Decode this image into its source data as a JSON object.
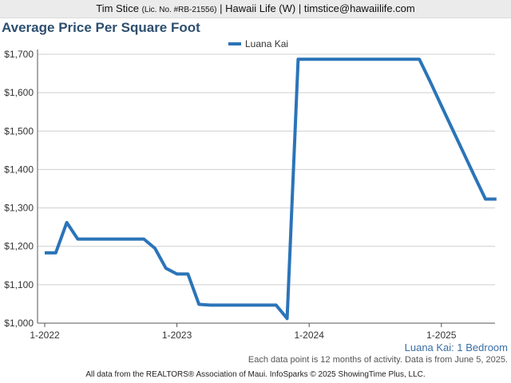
{
  "header": {
    "agent": "Tim Stice",
    "license": "(Lic. No. #RB-21556)",
    "rest": "| Hawaii Life (W) | timstice@hawaiilife.com"
  },
  "chart_data": {
    "type": "line",
    "title": "Average Price Per Square Foot",
    "legend": "top-center",
    "grid": true,
    "x_ticks": [
      "1-2022",
      "1-2023",
      "1-2024",
      "1-2025"
    ],
    "y_ticks": [
      "$1,000",
      "$1,100",
      "$1,200",
      "$1,300",
      "$1,400",
      "$1,500",
      "$1,600",
      "$1,700"
    ],
    "ylim": [
      1000,
      1700
    ],
    "series": [
      {
        "name": "Luana Kai",
        "color": "#2b74b8",
        "points": [
          {
            "x": "2022-01",
            "y": 1183
          },
          {
            "x": "2022-02",
            "y": 1183
          },
          {
            "x": "2022-03",
            "y": 1262
          },
          {
            "x": "2022-04",
            "y": 1219
          },
          {
            "x": "2022-05",
            "y": 1219
          },
          {
            "x": "2022-06",
            "y": 1219
          },
          {
            "x": "2022-07",
            "y": 1219
          },
          {
            "x": "2022-08",
            "y": 1219
          },
          {
            "x": "2022-09",
            "y": 1219
          },
          {
            "x": "2022-10",
            "y": 1219
          },
          {
            "x": "2022-11",
            "y": 1195
          },
          {
            "x": "2022-12",
            "y": 1143
          },
          {
            "x": "2023-01",
            "y": 1128
          },
          {
            "x": "2023-02",
            "y": 1128
          },
          {
            "x": "2023-03",
            "y": 1049
          },
          {
            "x": "2023-04",
            "y": 1047
          },
          {
            "x": "2023-05",
            "y": 1047
          },
          {
            "x": "2023-06",
            "y": 1047
          },
          {
            "x": "2023-07",
            "y": 1047
          },
          {
            "x": "2023-08",
            "y": 1047
          },
          {
            "x": "2023-09",
            "y": 1047
          },
          {
            "x": "2023-10",
            "y": 1047
          },
          {
            "x": "2023-11",
            "y": 1012
          },
          {
            "x": "2023-12",
            "y": 1687
          },
          {
            "x": "2024-01",
            "y": 1687
          },
          {
            "x": "2024-02",
            "y": 1687
          },
          {
            "x": "2024-03",
            "y": 1687
          },
          {
            "x": "2024-04",
            "y": 1687
          },
          {
            "x": "2024-05",
            "y": 1687
          },
          {
            "x": "2024-06",
            "y": 1687
          },
          {
            "x": "2024-07",
            "y": 1687
          },
          {
            "x": "2024-08",
            "y": 1687
          },
          {
            "x": "2024-09",
            "y": 1687
          },
          {
            "x": "2024-10",
            "y": 1687
          },
          {
            "x": "2024-11",
            "y": 1687
          },
          {
            "x": "2024-12",
            "y": 1628
          },
          {
            "x": "2025-01",
            "y": 1566
          },
          {
            "x": "2025-02",
            "y": 1505
          },
          {
            "x": "2025-03",
            "y": 1444
          },
          {
            "x": "2025-04",
            "y": 1383
          },
          {
            "x": "2025-05",
            "y": 1323
          },
          {
            "x": "2025-06",
            "y": 1323
          }
        ]
      }
    ]
  },
  "footer": {
    "subtitle": "Luana Kai: 1 Bedroom",
    "note": "Each data point is 12 months of activity. Data is from June 5, 2025.",
    "credit": "All data from the REALTORS® Association of Maui. InfoSparks © 2025 ShowingTime Plus, LLC."
  }
}
